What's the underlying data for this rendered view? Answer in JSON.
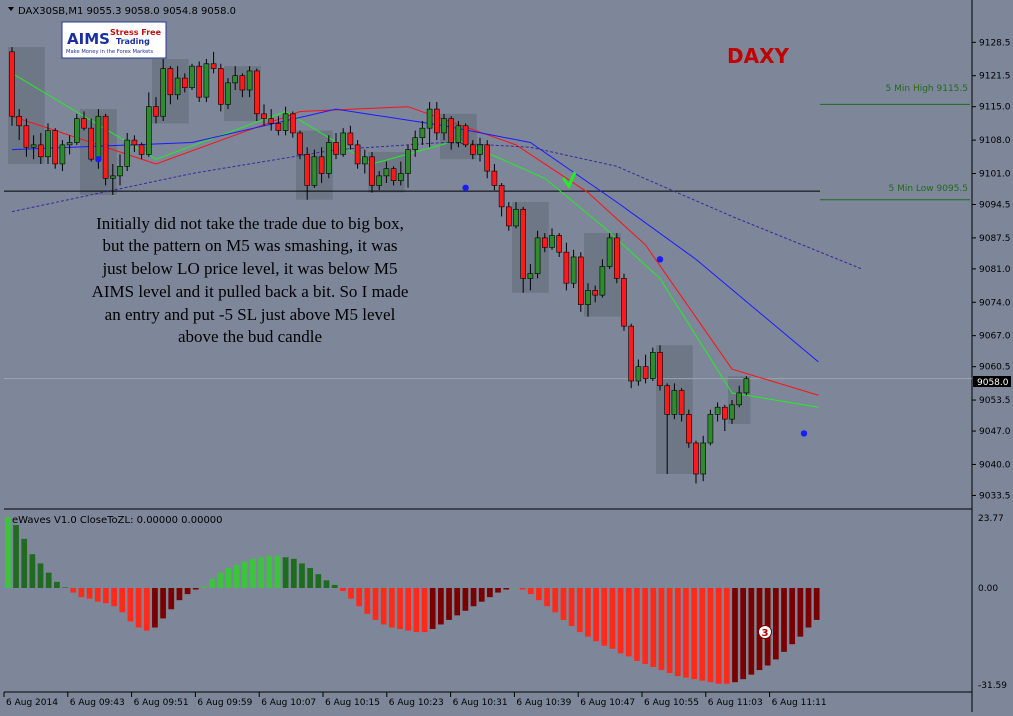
{
  "window": {
    "symbol_header": "DAX30SB,M1  9055.3 9058.0 9054.8 9058.0",
    "brand_title": "DAXY",
    "current_price": "9058.0"
  },
  "logo": {
    "name_main": "AIMS",
    "name_side_1": "Stress Free",
    "name_side_2": "Trading",
    "tagline": "Make Money in the Forex Markets"
  },
  "annotation": {
    "lines": [
      "Initially did not take the trade due to big box,",
      "but the pattern on M5 was smashing, it was",
      "just below LO price level, it was below M5",
      "AIMS level and it pulled back a bit. So I made",
      "an entry and put -5 SL just above M5 level",
      "above the bud candle"
    ]
  },
  "levels": {
    "high_label": "5 Min High  9115.5",
    "high_value": 9115.5,
    "low_label": "5 Min Low  9095.5",
    "low_value": 9095.5,
    "horizontal_line_value": 9097.3
  },
  "indicator": {
    "header": "eWaves V1.0 CloseToZL: 0.00000 0.00000",
    "badge": "3",
    "axis_labels": [
      "23.77",
      "0.00",
      "-31.59"
    ]
  },
  "colors": {
    "background": "#7d8799",
    "box": "#6b7482",
    "bull": "#2e8b2e",
    "bear": "#ff1a1a",
    "bar_green_dark": "#1f6b1f",
    "bar_green_light": "#3cc43c",
    "bar_red_light": "#ff2a1a",
    "bar_red_dark": "#7a0000",
    "blue_line": "#1a1aff",
    "red_line": "#ff1010",
    "green_line": "#22ee22",
    "purple_line": "#3a2a9a",
    "level_line": "#1f6b1f"
  },
  "chart_data": {
    "type": "candlestick",
    "symbol": "DAX30SB",
    "timeframe": "M1",
    "y_ticks": [
      "9128.5",
      "9121.5",
      "9115.0",
      "9108.0",
      "9101.0",
      "9094.5",
      "9087.5",
      "9081.0",
      "9074.0",
      "9067.0",
      "9060.5",
      "9053.5",
      "9047.0",
      "9040.0",
      "9033.5"
    ],
    "y_range": [
      9031.5,
      9131.5
    ],
    "x_tick_labels": [
      "6 Aug 2014",
      "6 Aug 09:43",
      "6 Aug 09:51",
      "6 Aug 09:59",
      "6 Aug 10:07",
      "6 Aug 10:15",
      "6 Aug 10:23",
      "6 Aug 10:31",
      "6 Aug 10:39",
      "6 Aug 10:47",
      "6 Aug 10:55",
      "6 Aug 11:03",
      "6 Aug 11:11"
    ],
    "candles_ohlc": [
      [
        9126.5,
        9127.5,
        9111.0,
        9113.0
      ],
      [
        9113.0,
        9114.5,
        9108.0,
        9111.0
      ],
      [
        9111.0,
        9112.5,
        9104.5,
        9106.5
      ],
      [
        9106.5,
        9109.0,
        9104.0,
        9107.0
      ],
      [
        9107.0,
        9109.5,
        9103.0,
        9104.5
      ],
      [
        9104.5,
        9111.5,
        9103.0,
        9110.0
      ],
      [
        9110.0,
        9110.5,
        9102.0,
        9103.0
      ],
      [
        9103.0,
        9108.0,
        9101.5,
        9107.0
      ],
      [
        9107.0,
        9109.0,
        9105.0,
        9107.5
      ],
      [
        9107.5,
        9113.5,
        9107.0,
        9112.5
      ],
      [
        9112.5,
        9114.0,
        9110.0,
        9110.5
      ],
      [
        9110.5,
        9112.5,
        9103.5,
        9104.0
      ],
      [
        9104.0,
        9114.5,
        9102.0,
        9113.0
      ],
      [
        9113.0,
        9113.5,
        9098.5,
        9100.0
      ],
      [
        9100.0,
        9103.0,
        9096.5,
        9100.5
      ],
      [
        9100.5,
        9105.0,
        9098.5,
        9102.5
      ],
      [
        9102.5,
        9109.5,
        9101.5,
        9108.0
      ],
      [
        9108.0,
        9109.0,
        9105.5,
        9107.0
      ],
      [
        9107.0,
        9107.5,
        9104.0,
        9105.0
      ],
      [
        9105.0,
        9118.0,
        9104.5,
        9115.0
      ],
      [
        9115.0,
        9117.0,
        9111.5,
        9113.0
      ],
      [
        9113.0,
        9125.0,
        9112.0,
        9123.0
      ],
      [
        9123.0,
        9123.5,
        9115.5,
        9117.5
      ],
      [
        9117.5,
        9123.5,
        9116.5,
        9121.0
      ],
      [
        9121.0,
        9122.0,
        9118.0,
        9119.0
      ],
      [
        9119.0,
        9124.0,
        9118.5,
        9123.5
      ],
      [
        9123.5,
        9124.5,
        9116.0,
        9117.0
      ],
      [
        9117.0,
        9125.0,
        9116.0,
        9124.0
      ],
      [
        9124.0,
        9126.5,
        9122.0,
        9123.0
      ],
      [
        9123.0,
        9124.0,
        9114.0,
        9115.5
      ],
      [
        9115.5,
        9121.0,
        9114.5,
        9120.0
      ],
      [
        9120.0,
        9123.5,
        9118.5,
        9121.5
      ],
      [
        9121.5,
        9122.0,
        9117.0,
        9118.5
      ],
      [
        9118.5,
        9123.5,
        9117.0,
        9122.5
      ],
      [
        9122.5,
        9123.0,
        9112.0,
        9113.5
      ],
      [
        9113.5,
        9115.5,
        9111.0,
        9112.5
      ],
      [
        9112.5,
        9114.5,
        9110.0,
        9111.5
      ],
      [
        9111.5,
        9113.0,
        9109.0,
        9110.0
      ],
      [
        9110.0,
        9115.0,
        9109.0,
        9113.5
      ],
      [
        9113.5,
        9114.0,
        9108.5,
        9109.5
      ],
      [
        9109.5,
        9110.0,
        9104.0,
        9105.0
      ],
      [
        9105.0,
        9106.5,
        9095.5,
        9098.5
      ],
      [
        9098.5,
        9106.0,
        9098.0,
        9104.5
      ],
      [
        9104.5,
        9106.5,
        9099.0,
        9101.0
      ],
      [
        9101.0,
        9109.0,
        9100.0,
        9107.5
      ],
      [
        9107.5,
        9109.5,
        9104.0,
        9105.0
      ],
      [
        9105.0,
        9110.5,
        9104.5,
        9109.5
      ],
      [
        9109.5,
        9111.0,
        9106.0,
        9107.0
      ],
      [
        9107.0,
        9108.0,
        9102.0,
        9103.0
      ],
      [
        9103.0,
        9106.0,
        9101.0,
        9104.5
      ],
      [
        9104.5,
        9105.5,
        9097.0,
        9098.5
      ],
      [
        9098.5,
        9101.5,
        9097.5,
        9100.5
      ],
      [
        9100.5,
        9103.5,
        9099.0,
        9102.0
      ],
      [
        9102.0,
        9102.5,
        9098.5,
        9099.5
      ],
      [
        9099.5,
        9103.5,
        9098.5,
        9101.0
      ],
      [
        9101.0,
        9107.0,
        9098.0,
        9106.0
      ],
      [
        9106.0,
        9110.0,
        9104.5,
        9108.5
      ],
      [
        9108.5,
        9112.0,
        9107.0,
        9110.5
      ],
      [
        9110.5,
        9116.0,
        9106.5,
        9114.5
      ],
      [
        9114.5,
        9116.0,
        9108.0,
        9109.5
      ],
      [
        9109.5,
        9113.5,
        9108.0,
        9112.5
      ],
      [
        9112.5,
        9113.0,
        9106.0,
        9107.5
      ],
      [
        9107.5,
        9112.0,
        9106.5,
        9111.0
      ],
      [
        9111.0,
        9111.5,
        9106.5,
        9107.0
      ],
      [
        9107.0,
        9108.0,
        9104.0,
        9105.0
      ],
      [
        9105.0,
        9108.5,
        9103.5,
        9107.0
      ],
      [
        9107.0,
        9108.0,
        9100.0,
        9101.5
      ],
      [
        9101.5,
        9103.0,
        9097.5,
        9098.5
      ],
      [
        9098.5,
        9099.0,
        9092.0,
        9094.0
      ],
      [
        9094.0,
        9095.0,
        9089.0,
        9090.0
      ],
      [
        9090.0,
        9095.0,
        9089.5,
        9093.5
      ],
      [
        9093.5,
        9094.0,
        9076.0,
        9079.0
      ],
      [
        9079.0,
        9082.0,
        9076.5,
        9080.0
      ],
      [
        9080.0,
        9089.0,
        9079.0,
        9087.5
      ],
      [
        9087.5,
        9088.5,
        9084.5,
        9085.5
      ],
      [
        9085.5,
        9089.5,
        9085.0,
        9088.0
      ],
      [
        9088.0,
        9088.5,
        9083.5,
        9084.5
      ],
      [
        9084.5,
        9086.5,
        9076.5,
        9078.0
      ],
      [
        9078.0,
        9085.0,
        9077.0,
        9083.5
      ],
      [
        9083.5,
        9084.5,
        9072.0,
        9073.5
      ],
      [
        9073.5,
        9078.0,
        9071.0,
        9076.5
      ],
      [
        9076.5,
        9077.5,
        9074.0,
        9075.5
      ],
      [
        9075.5,
        9083.0,
        9075.0,
        9081.5
      ],
      [
        9081.5,
        9088.5,
        9081.0,
        9087.5
      ],
      [
        9087.5,
        9088.5,
        9078.0,
        9079.0
      ],
      [
        9079.0,
        9080.0,
        9068.0,
        9069.0
      ],
      [
        9069.0,
        9069.5,
        9056.0,
        9057.5
      ],
      [
        9057.5,
        9062.0,
        9056.5,
        9060.5
      ],
      [
        9060.5,
        9063.0,
        9057.0,
        9058.0
      ],
      [
        9058.0,
        9064.5,
        9057.5,
        9063.5
      ],
      [
        9063.5,
        9065.0,
        9055.5,
        9056.5
      ],
      [
        9056.5,
        9057.0,
        9038.0,
        9050.5
      ],
      [
        9050.5,
        9057.0,
        9049.5,
        9055.5
      ],
      [
        9055.5,
        9056.0,
        9049.0,
        9050.5
      ],
      [
        9050.5,
        9051.5,
        9043.5,
        9044.5
      ],
      [
        9044.5,
        9045.0,
        9036.0,
        9038.0
      ],
      [
        9038.0,
        9046.0,
        9036.5,
        9044.5
      ],
      [
        9044.5,
        9051.5,
        9044.0,
        9050.5
      ],
      [
        9050.5,
        9053.0,
        9049.0,
        9052.0
      ],
      [
        9052.0,
        9052.5,
        9047.0,
        9049.5
      ],
      [
        9049.5,
        9053.5,
        9048.5,
        9052.5
      ],
      [
        9052.5,
        9056.5,
        9052.0,
        9055.0
      ],
      [
        9055.0,
        9058.5,
        9054.5,
        9058.0
      ]
    ],
    "moving_averages": {
      "red": [
        [
          0,
          9113.0
        ],
        [
          20,
          9103.0
        ],
        [
          40,
          9114.0
        ],
        [
          55,
          9115.0
        ],
        [
          70,
          9107.0
        ],
        [
          80,
          9097.0
        ],
        [
          88,
          9086.0
        ],
        [
          100,
          9060.0
        ],
        [
          112,
          9054.5
        ]
      ],
      "green": [
        [
          0,
          9122.0
        ],
        [
          20,
          9104.0
        ],
        [
          38,
          9114.0
        ],
        [
          50,
          9103.0
        ],
        [
          62,
          9108.0
        ],
        [
          74,
          9100.0
        ],
        [
          82,
          9090.0
        ],
        [
          90,
          9079.0
        ],
        [
          100,
          9055.0
        ],
        [
          112,
          9052.0
        ]
      ],
      "blue": [
        [
          0,
          9106.0
        ],
        [
          25,
          9107.5
        ],
        [
          45,
          9114.5
        ],
        [
          60,
          9111.0
        ],
        [
          72,
          9107.5
        ],
        [
          84,
          9095.0
        ],
        [
          95,
          9083.0
        ],
        [
          112,
          9061.5
        ]
      ],
      "purple": [
        [
          0,
          9093.0
        ],
        [
          25,
          9101.0
        ],
        [
          45,
          9106.0
        ],
        [
          60,
          9107.5
        ],
        [
          72,
          9106.5
        ],
        [
          84,
          9102.5
        ],
        [
          100,
          9092.0
        ],
        [
          118,
          9081.0
        ]
      ]
    },
    "indicator_histogram": [
      23.0,
      20.5,
      16.0,
      11.0,
      8.0,
      5.0,
      2.0,
      0.2,
      -1.5,
      -3.0,
      -3.5,
      -4.5,
      -5.0,
      -6.0,
      -8.0,
      -11.0,
      -13.0,
      -14.0,
      -13.0,
      -10.0,
      -7.0,
      -4.0,
      -2.0,
      -0.5,
      0.5,
      3.0,
      5.0,
      6.5,
      7.5,
      8.5,
      9.5,
      10.0,
      10.5,
      10.5,
      10.0,
      9.5,
      8.0,
      6.5,
      4.5,
      2.5,
      1.0,
      -1.0,
      -3.5,
      -6.0,
      -8.5,
      -10.5,
      -12.0,
      -13.0,
      -13.5,
      -14.0,
      -14.5,
      -14.5,
      -13.5,
      -12.0,
      -10.5,
      -9.0,
      -7.5,
      -6.0,
      -4.5,
      -3.0,
      -1.5,
      -0.5,
      0.0,
      -0.5,
      -2.0,
      -4.0,
      -6.0,
      -8.0,
      -10.5,
      -12.5,
      -14.5,
      -16.0,
      -17.5,
      -19.0,
      -20.0,
      -21.5,
      -22.5,
      -24.0,
      -25.0,
      -26.0,
      -27.0,
      -28.0,
      -29.0,
      -29.5,
      -30.0,
      -30.5,
      -31.0,
      -31.5,
      -31.5,
      -31.0,
      -30.0,
      -28.5,
      -27.0,
      -25.5,
      -23.5,
      -21.0,
      -18.5,
      -16.0,
      -13.0,
      -10.5
    ]
  }
}
